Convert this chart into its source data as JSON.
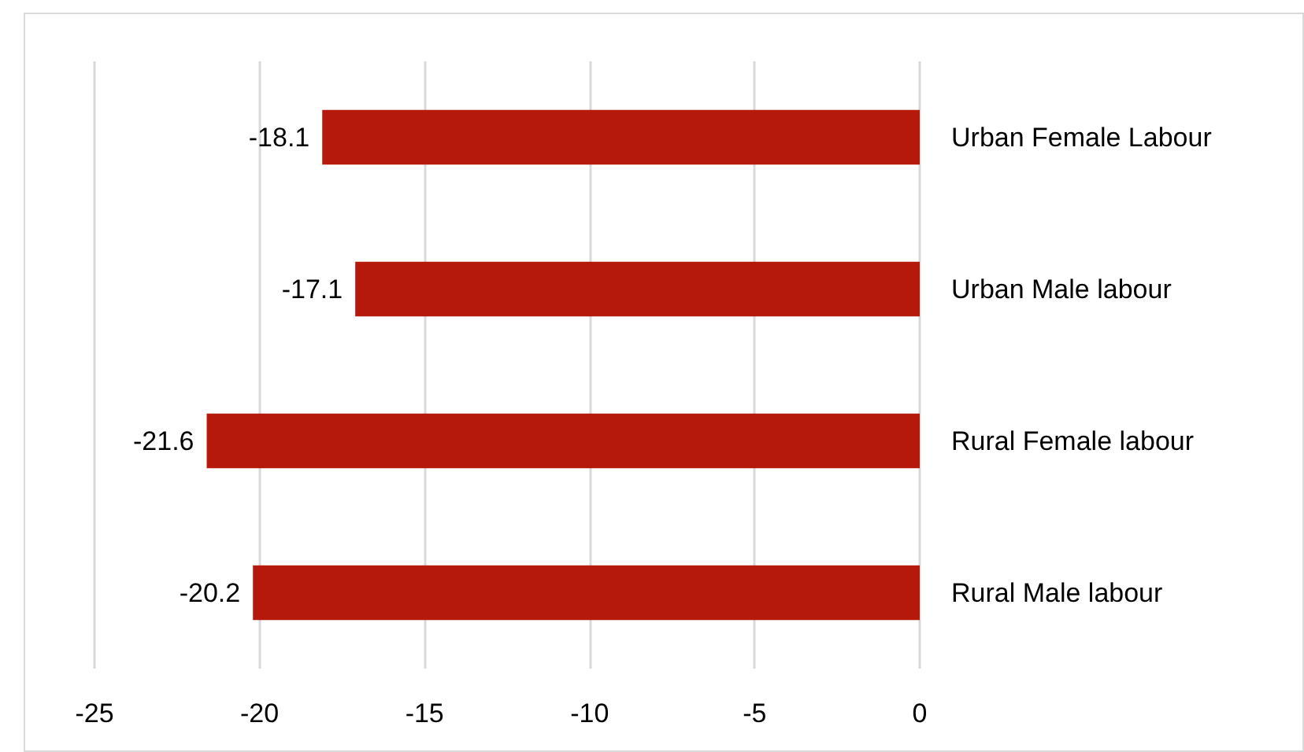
{
  "chart_data": {
    "type": "bar",
    "orientation": "horizontal",
    "categories": [
      "Urban Female Labour",
      "Urban Male labour",
      "Rural Female labour",
      "Rural Male labour"
    ],
    "values": [
      -18.1,
      -17.1,
      -21.6,
      -20.2
    ],
    "color": "#b5190c",
    "xlim": [
      -25,
      0
    ],
    "xticks": [
      -25,
      -20,
      -15,
      -10,
      -5,
      0
    ],
    "grid": "x",
    "data_labels": true
  }
}
